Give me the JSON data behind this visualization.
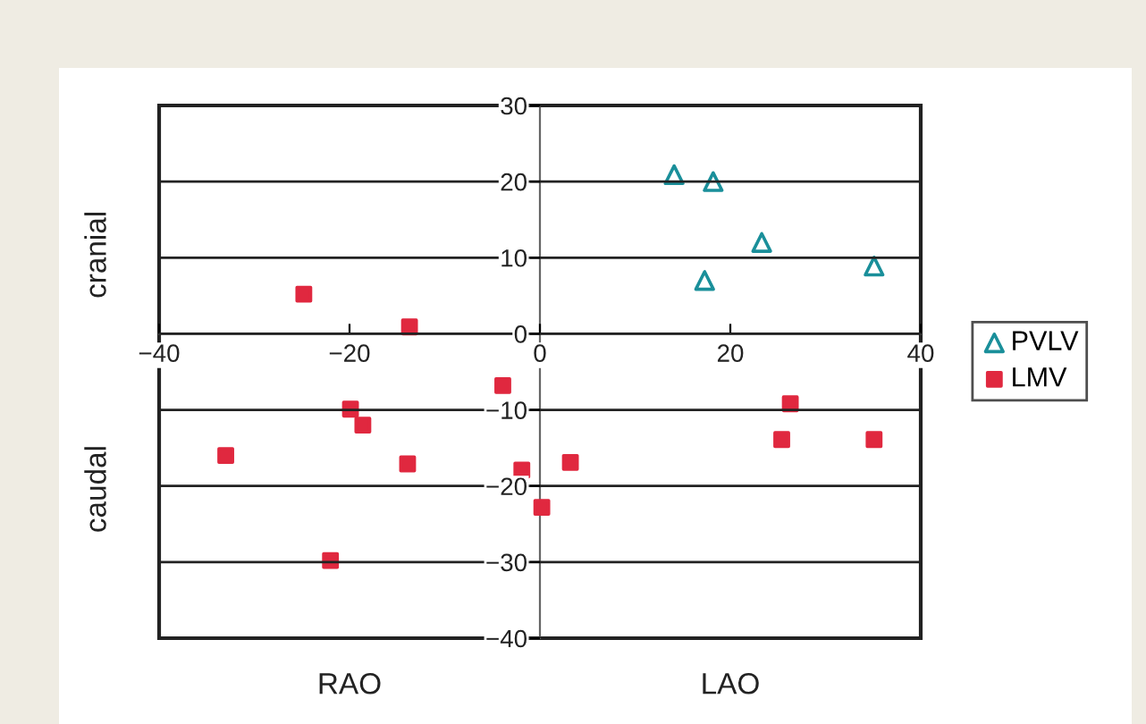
{
  "chart_data": {
    "type": "scatter",
    "xlim": [
      -40,
      40
    ],
    "ylim": [
      -40,
      30
    ],
    "xticks": [
      {
        "value": -40,
        "label": "−40"
      },
      {
        "value": -20,
        "label": "−20"
      },
      0,
      20,
      40
    ],
    "yticks": [
      {
        "value": -40,
        "label": "−40"
      },
      {
        "value": -30,
        "label": "−30"
      },
      {
        "value": -20,
        "label": "−20"
      },
      {
        "value": -10,
        "label": "−10"
      },
      0,
      10,
      20,
      30
    ],
    "grid": "y",
    "legend": "right",
    "annotations": [
      "cranial",
      "caudal",
      "RAO",
      "LAO"
    ],
    "series": [
      {
        "name": "PVLV",
        "color": "#1a8f9a",
        "marker": "triangle",
        "x": [
          14.1,
          18.2,
          17.3,
          23.3,
          35.1
        ],
        "values": [
          20.9,
          20,
          7,
          12,
          8.9
        ]
      },
      {
        "name": "LMV",
        "color": "#e0283f",
        "marker": "square",
        "x": [
          -24.8,
          -13.7,
          -19.9,
          -18.6,
          -33,
          -13.9,
          -3.9,
          -1.9,
          0.2,
          3.2,
          -22,
          26.3,
          25.4,
          35.1
        ],
        "values": [
          5.2,
          0.9,
          -9.9,
          -12,
          -16,
          -17.1,
          -6.8,
          -17.9,
          -22.8,
          -16.9,
          -29.8,
          -9.2,
          -13.9,
          -13.9
        ]
      }
    ]
  }
}
